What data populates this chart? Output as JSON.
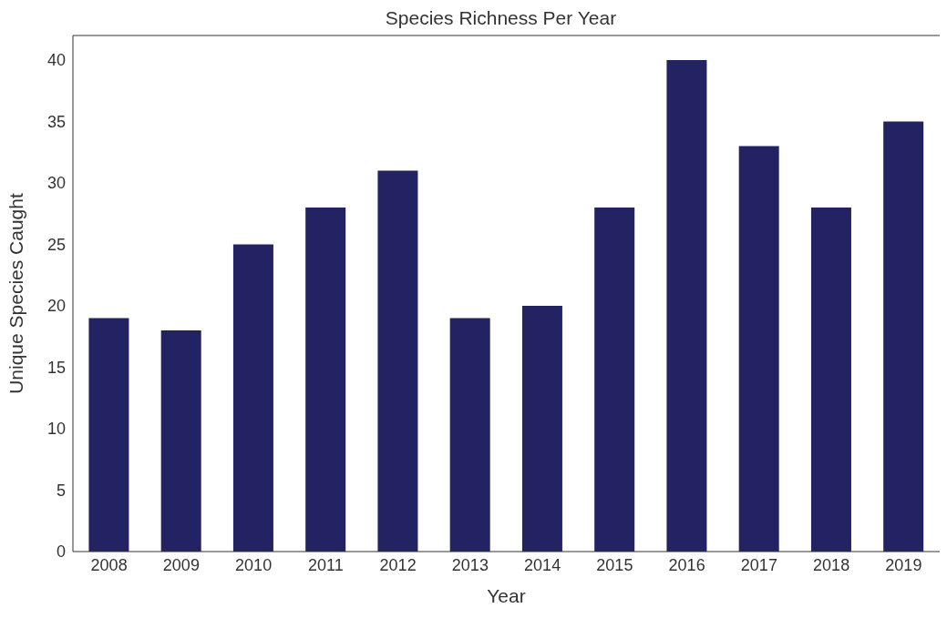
{
  "chart_data": {
    "type": "bar",
    "title": "Species Richness Per Year",
    "xlabel": "Year",
    "ylabel": "Unique Species Caught",
    "categories": [
      "2008",
      "2009",
      "2010",
      "2011",
      "2012",
      "2013",
      "2014",
      "2015",
      "2016",
      "2017",
      "2018",
      "2019"
    ],
    "values": [
      19,
      18,
      25,
      28,
      31,
      19,
      20,
      28,
      40,
      33,
      28,
      35
    ],
    "color": "#232262",
    "ylim": [
      0,
      42
    ],
    "yticks": [
      0,
      5,
      10,
      15,
      20,
      25,
      30,
      35,
      40
    ],
    "grid": false
  }
}
